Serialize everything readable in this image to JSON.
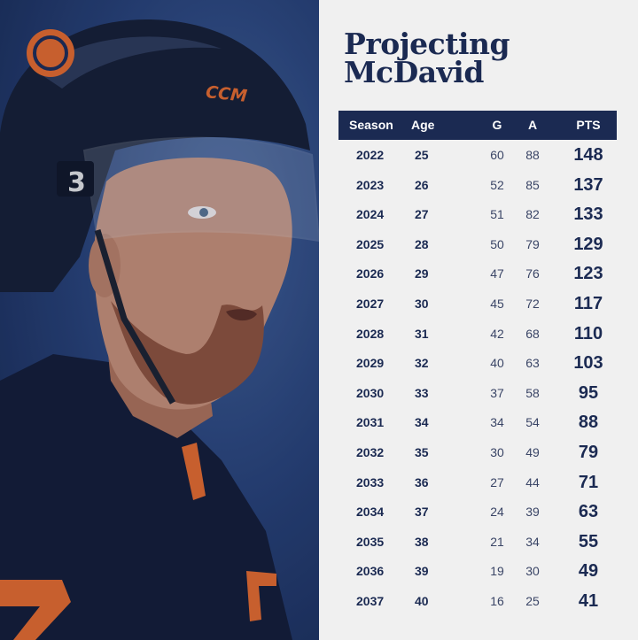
{
  "title": {
    "line1": "Projecting",
    "line2": "McDavid"
  },
  "helmet_brand": "CCM",
  "columns": {
    "season": "Season",
    "age": "Age",
    "g": "G",
    "a": "A",
    "pts": "PTS"
  },
  "rows": [
    {
      "season": "2022",
      "age": "25",
      "g": "60",
      "a": "88",
      "pts": "148"
    },
    {
      "season": "2023",
      "age": "26",
      "g": "52",
      "a": "85",
      "pts": "137"
    },
    {
      "season": "2024",
      "age": "27",
      "g": "51",
      "a": "82",
      "pts": "133"
    },
    {
      "season": "2025",
      "age": "28",
      "g": "50",
      "a": "79",
      "pts": "129"
    },
    {
      "season": "2026",
      "age": "29",
      "g": "47",
      "a": "76",
      "pts": "123"
    },
    {
      "season": "2027",
      "age": "30",
      "g": "45",
      "a": "72",
      "pts": "117"
    },
    {
      "season": "2028",
      "age": "31",
      "g": "42",
      "a": "68",
      "pts": "110"
    },
    {
      "season": "2029",
      "age": "32",
      "g": "40",
      "a": "63",
      "pts": "103"
    },
    {
      "season": "2030",
      "age": "33",
      "g": "37",
      "a": "58",
      "pts": "95"
    },
    {
      "season": "2031",
      "age": "34",
      "g": "34",
      "a": "54",
      "pts": "88"
    },
    {
      "season": "2032",
      "age": "35",
      "g": "30",
      "a": "49",
      "pts": "79"
    },
    {
      "season": "2033",
      "age": "36",
      "g": "27",
      "a": "44",
      "pts": "71"
    },
    {
      "season": "2034",
      "age": "37",
      "g": "24",
      "a": "39",
      "pts": "63"
    },
    {
      "season": "2035",
      "age": "38",
      "g": "21",
      "a": "34",
      "pts": "55"
    },
    {
      "season": "2036",
      "age": "39",
      "g": "19",
      "a": "30",
      "pts": "49"
    },
    {
      "season": "2037",
      "age": "40",
      "g": "16",
      "a": "25",
      "pts": "41"
    }
  ],
  "colors": {
    "navy": "#1b2a52",
    "panel_bg": "#f0f0f0",
    "orange": "#e0672a",
    "photo_bg": "#263f73"
  }
}
